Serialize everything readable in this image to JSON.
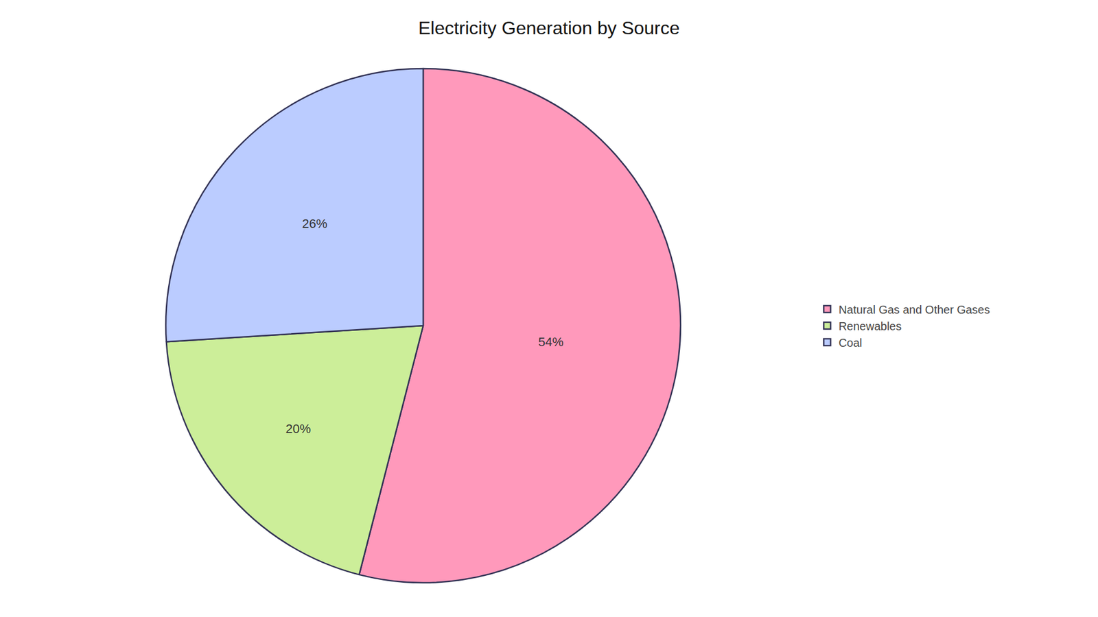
{
  "chart_data": {
    "type": "pie",
    "title": "Electricity Generation by Source",
    "categories": [
      "Natural Gas and Other Gases",
      "Renewables",
      "Coal"
    ],
    "values": [
      54,
      20,
      26
    ],
    "value_labels": [
      "54%",
      "20%",
      "26%"
    ],
    "colors": [
      "#FF99BB",
      "#CCEE99",
      "#BBCCFF"
    ],
    "data_labels": true,
    "legend": "right"
  }
}
